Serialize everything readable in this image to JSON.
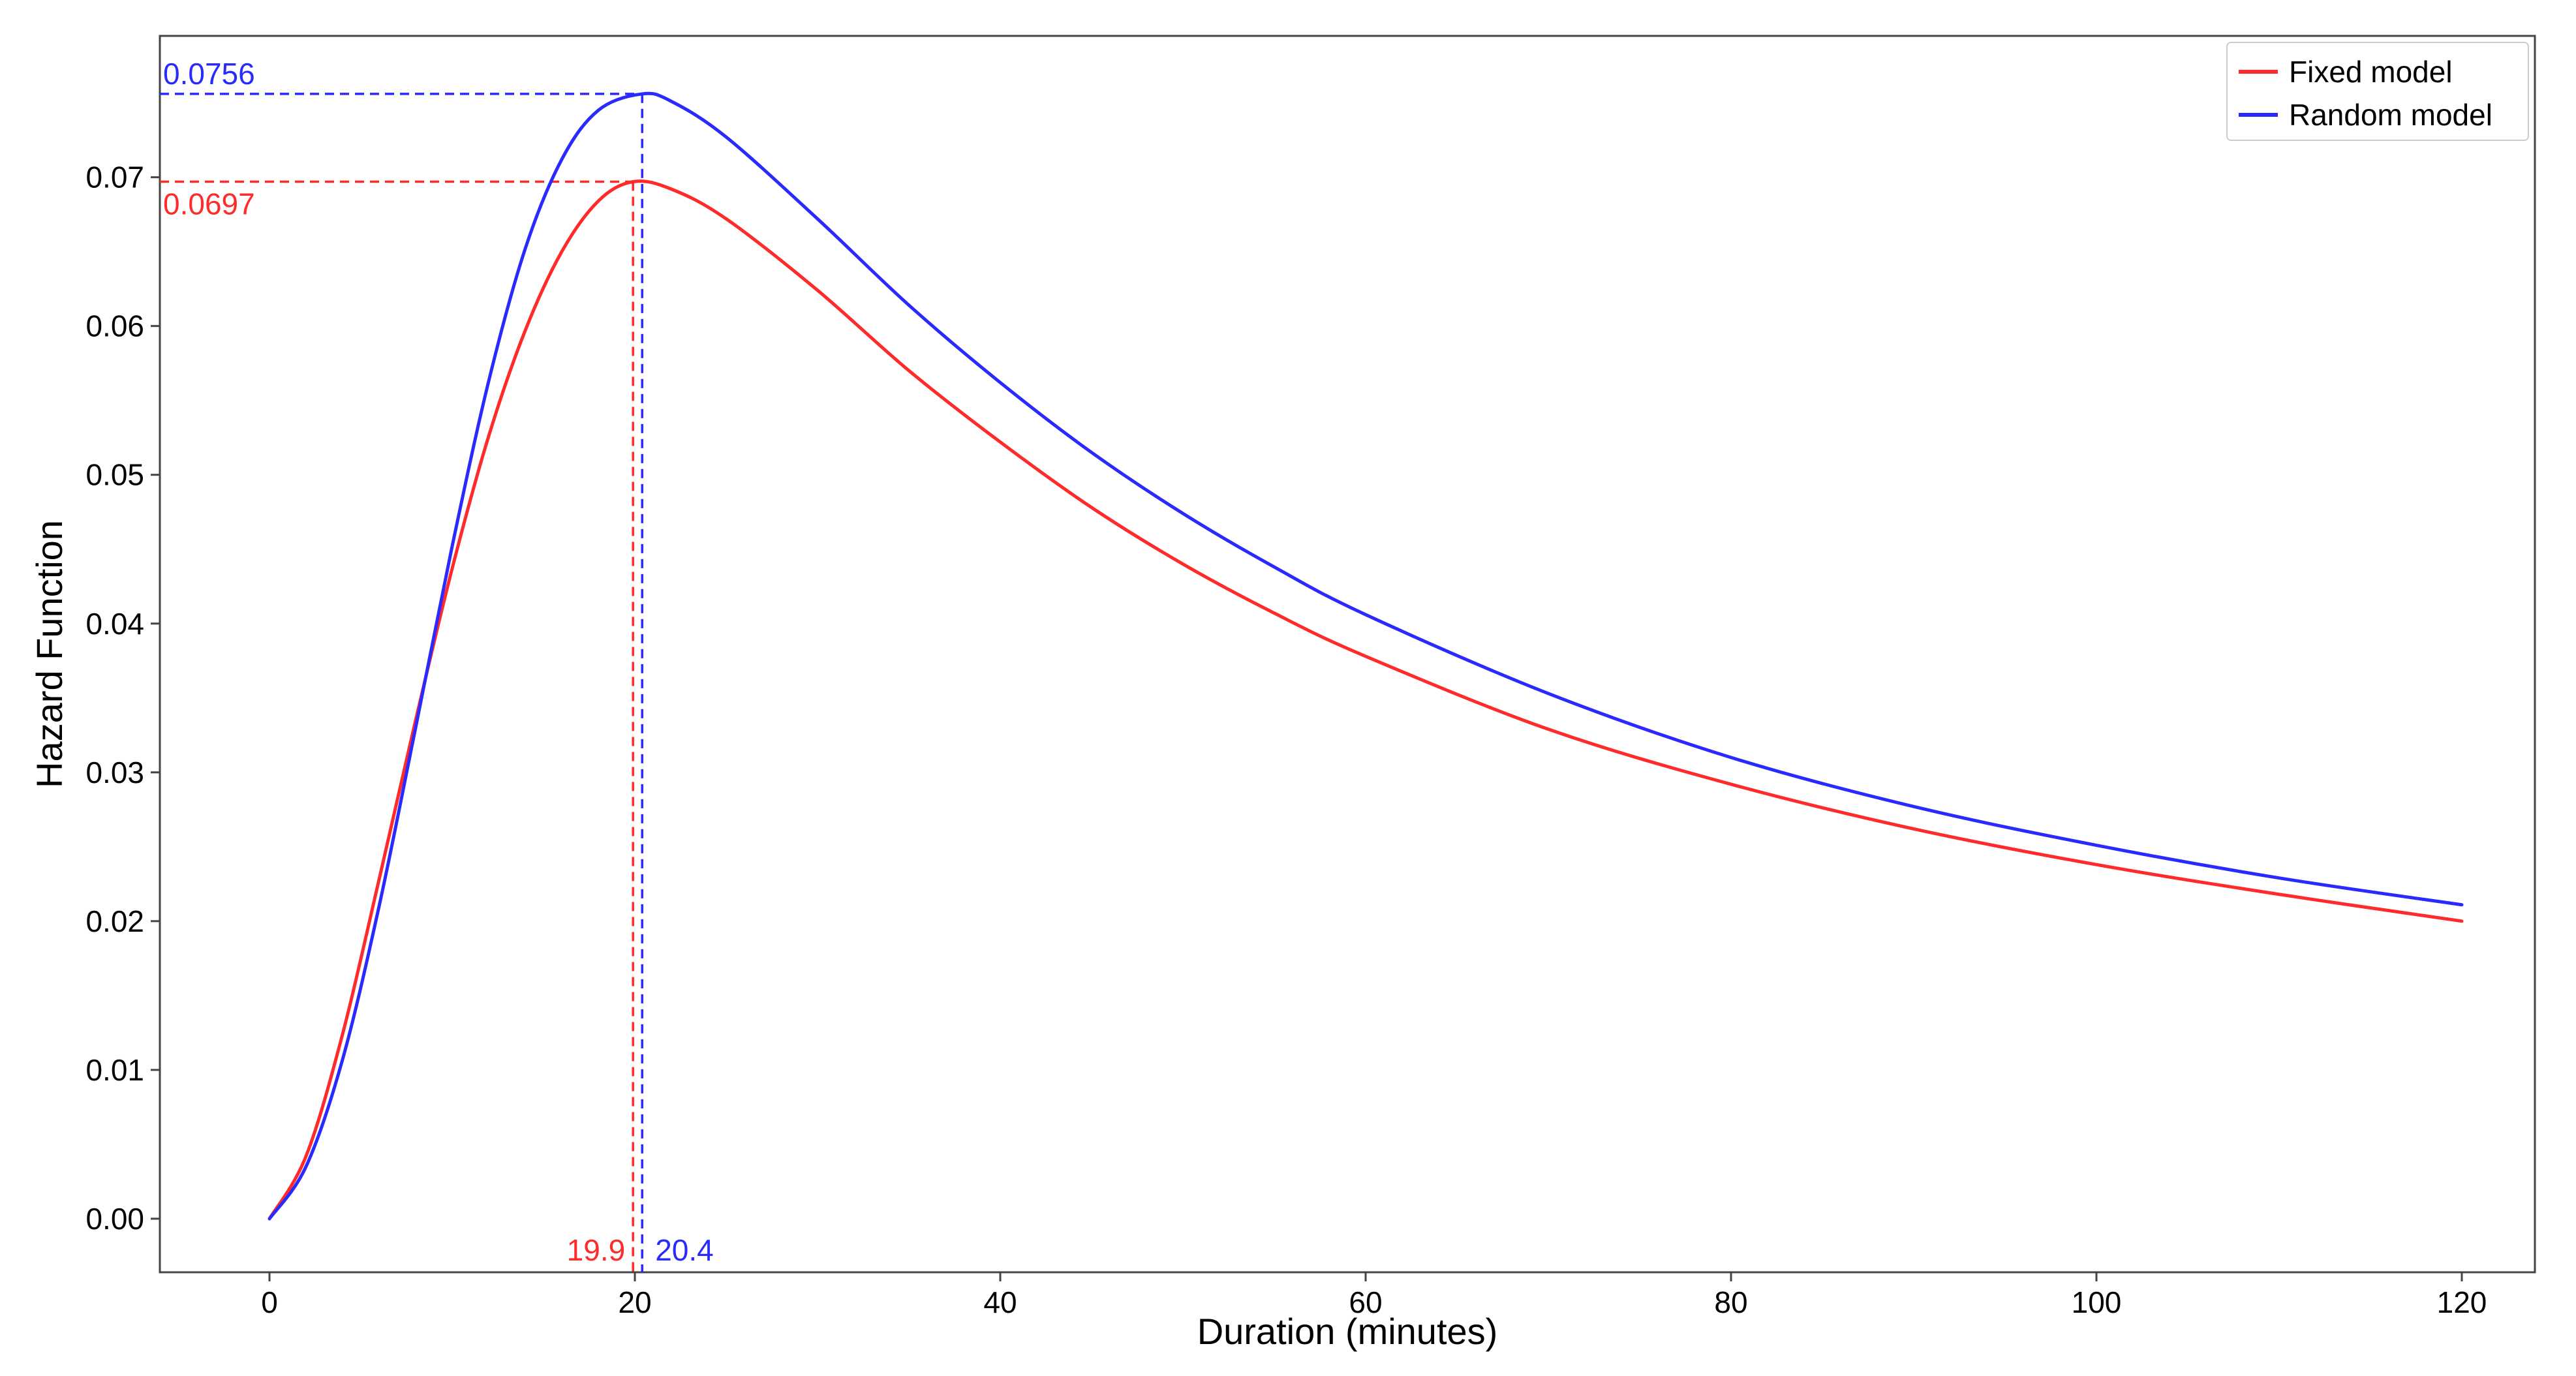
{
  "chart_data": {
    "type": "line",
    "title": "",
    "xlabel": "Duration (minutes)",
    "ylabel": "Hazard Function",
    "xlim": [
      -6,
      124
    ],
    "ylim": [
      -0.0036,
      0.0795
    ],
    "xticks": [
      0,
      20,
      40,
      60,
      80,
      100,
      120
    ],
    "xtick_labels": [
      "0",
      "20",
      "40",
      "60",
      "80",
      "100",
      "120"
    ],
    "yticks": [
      0.0,
      0.01,
      0.02,
      0.03,
      0.04,
      0.05,
      0.06,
      0.07
    ],
    "ytick_labels": [
      "0.00",
      "0.01",
      "0.02",
      "0.03",
      "0.04",
      "0.05",
      "0.06",
      "0.07"
    ],
    "grid": false,
    "legend": "top-right",
    "series": [
      {
        "name": "Fixed model",
        "color": "#ff2a2a",
        "x": [
          0,
          2,
          4,
          6,
          8,
          10,
          12,
          14,
          16,
          18,
          19.9,
          22,
          25,
          30,
          35,
          40,
          45,
          50,
          55,
          60,
          70,
          80,
          90,
          100,
          110,
          120
        ],
        "y": [
          0.0,
          0.0042,
          0.0124,
          0.0228,
          0.0335,
          0.0437,
          0.0526,
          0.0597,
          0.065,
          0.0684,
          0.0697,
          0.0692,
          0.0672,
          0.0624,
          0.057,
          0.0522,
          0.0478,
          0.044,
          0.0407,
          0.0378,
          0.0329,
          0.0292,
          0.0262,
          0.0238,
          0.0218,
          0.02
        ]
      },
      {
        "name": "Random model",
        "color": "#2a2aff",
        "x": [
          0,
          2,
          4,
          6,
          8,
          10,
          12,
          14,
          16,
          18,
          20.4,
          22,
          25,
          30,
          35,
          40,
          45,
          50,
          55,
          60,
          70,
          80,
          90,
          100,
          110,
          120
        ],
        "y": [
          0.0,
          0.0035,
          0.0107,
          0.021,
          0.033,
          0.0452,
          0.0563,
          0.0652,
          0.0712,
          0.0745,
          0.0756,
          0.0751,
          0.0727,
          0.0672,
          0.0614,
          0.0562,
          0.0515,
          0.0474,
          0.0438,
          0.0406,
          0.0353,
          0.031,
          0.0277,
          0.0251,
          0.0229,
          0.0211
        ]
      }
    ],
    "annotations": [
      {
        "series": "Fixed model",
        "peak_x": 19.9,
        "peak_y": 0.0697,
        "x_label": "19.9",
        "y_label": "0.0697",
        "color": "#ff2a2a"
      },
      {
        "series": "Random model",
        "peak_x": 20.4,
        "peak_y": 0.0756,
        "x_label": "20.4",
        "y_label": "0.0756",
        "color": "#2a2aff"
      }
    ]
  }
}
